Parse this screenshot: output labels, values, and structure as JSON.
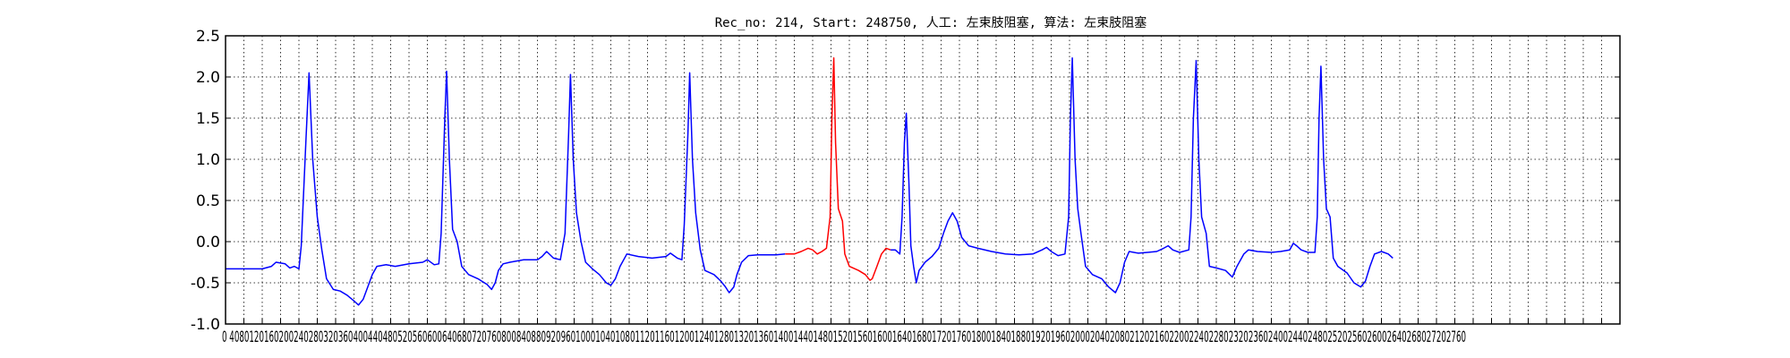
{
  "chart_data": {
    "type": "line",
    "title": "Rec_no: 214, Start: 248750, 人工: 左束肢阻塞, 算法: 左束肢阻塞",
    "xlabel": "",
    "ylabel": "",
    "xlim": [
      0,
      3040
    ],
    "ylim": [
      -1.0,
      2.5
    ],
    "grid": true,
    "yticks": [
      "2.5",
      "2.0",
      "1.5",
      "1.0",
      "0.5",
      "0.0",
      "-0.5",
      "-1.0"
    ],
    "xtick_text": "0 4080120160200240280320360400440480520560600640680720760800840880920960100010401080112011601200124012801320136014001440148015201560160016401680172017601800184018801920196020002040208021202160220022402280232023602400244024802520256026002640268027202760",
    "colors": {
      "main": "#0000ff",
      "highlight": "#ff0000"
    },
    "series": [
      {
        "color": "main",
        "points": [
          [
            0,
            -0.33
          ],
          [
            40,
            -0.33
          ],
          [
            80,
            -0.33
          ],
          [
            100,
            -0.3
          ],
          [
            110,
            -0.25
          ],
          [
            130,
            -0.27
          ],
          [
            140,
            -0.32
          ],
          [
            150,
            -0.3
          ],
          [
            160,
            -0.33
          ],
          [
            165,
            -0.05
          ],
          [
            175,
            1.2
          ],
          [
            182,
            2.05
          ],
          [
            190,
            1.0
          ],
          [
            200,
            0.3
          ],
          [
            210,
            -0.1
          ],
          [
            220,
            -0.45
          ],
          [
            235,
            -0.58
          ],
          [
            250,
            -0.6
          ],
          [
            265,
            -0.65
          ],
          [
            280,
            -0.72
          ],
          [
            290,
            -0.77
          ],
          [
            300,
            -0.7
          ],
          [
            310,
            -0.55
          ],
          [
            320,
            -0.4
          ],
          [
            330,
            -0.3
          ],
          [
            350,
            -0.28
          ],
          [
            370,
            -0.3
          ],
          [
            400,
            -0.27
          ],
          [
            430,
            -0.25
          ],
          [
            440,
            -0.22
          ],
          [
            455,
            -0.28
          ],
          [
            465,
            -0.27
          ],
          [
            470,
            0.1
          ],
          [
            478,
            1.5
          ],
          [
            482,
            2.07
          ],
          [
            488,
            1.0
          ],
          [
            495,
            0.15
          ],
          [
            505,
            0.0
          ],
          [
            515,
            -0.3
          ],
          [
            530,
            -0.4
          ],
          [
            550,
            -0.45
          ],
          [
            570,
            -0.52
          ],
          [
            580,
            -0.58
          ],
          [
            588,
            -0.5
          ],
          [
            595,
            -0.35
          ],
          [
            605,
            -0.27
          ],
          [
            620,
            -0.25
          ],
          [
            650,
            -0.22
          ],
          [
            680,
            -0.22
          ],
          [
            690,
            -0.18
          ],
          [
            700,
            -0.12
          ],
          [
            715,
            -0.2
          ],
          [
            730,
            -0.22
          ],
          [
            740,
            0.1
          ],
          [
            748,
            1.3
          ],
          [
            752,
            2.03
          ],
          [
            758,
            1.0
          ],
          [
            765,
            0.35
          ],
          [
            775,
            0.0
          ],
          [
            785,
            -0.25
          ],
          [
            800,
            -0.33
          ],
          [
            815,
            -0.4
          ],
          [
            830,
            -0.5
          ],
          [
            840,
            -0.53
          ],
          [
            850,
            -0.45
          ],
          [
            860,
            -0.3
          ],
          [
            875,
            -0.15
          ],
          [
            900,
            -0.18
          ],
          [
            930,
            -0.2
          ],
          [
            960,
            -0.18
          ],
          [
            970,
            -0.14
          ],
          [
            985,
            -0.2
          ],
          [
            995,
            -0.22
          ],
          [
            1000,
            0.2
          ],
          [
            1008,
            1.3
          ],
          [
            1012,
            2.05
          ],
          [
            1018,
            1.0
          ],
          [
            1025,
            0.35
          ],
          [
            1035,
            -0.1
          ],
          [
            1045,
            -0.35
          ],
          [
            1065,
            -0.4
          ],
          [
            1080,
            -0.48
          ],
          [
            1090,
            -0.55
          ],
          [
            1098,
            -0.62
          ],
          [
            1108,
            -0.55
          ],
          [
            1115,
            -0.4
          ],
          [
            1125,
            -0.25
          ],
          [
            1140,
            -0.17
          ],
          [
            1160,
            -0.16
          ],
          [
            1190,
            -0.16
          ],
          [
            1200,
            -0.16
          ],
          [
            1220,
            -0.15
          ]
        ]
      },
      {
        "color": "highlight",
        "points": [
          [
            1220,
            -0.15
          ],
          [
            1240,
            -0.15
          ],
          [
            1255,
            -0.12
          ],
          [
            1270,
            -0.08
          ],
          [
            1280,
            -0.1
          ],
          [
            1290,
            -0.15
          ],
          [
            1300,
            -0.12
          ],
          [
            1310,
            -0.08
          ],
          [
            1318,
            0.3
          ],
          [
            1322,
            1.5
          ],
          [
            1326,
            2.23
          ],
          [
            1330,
            1.2
          ],
          [
            1336,
            0.4
          ],
          [
            1345,
            0.25
          ],
          [
            1350,
            -0.15
          ],
          [
            1360,
            -0.3
          ],
          [
            1380,
            -0.35
          ],
          [
            1395,
            -0.4
          ],
          [
            1405,
            -0.47
          ],
          [
            1410,
            -0.45
          ],
          [
            1420,
            -0.3
          ],
          [
            1430,
            -0.15
          ],
          [
            1440,
            -0.08
          ],
          [
            1450,
            -0.1
          ]
        ]
      },
      {
        "color": "main",
        "points": [
          [
            1450,
            -0.1
          ],
          [
            1460,
            -0.1
          ],
          [
            1470,
            -0.15
          ],
          [
            1475,
            0.3
          ],
          [
            1480,
            1.2
          ],
          [
            1484,
            1.56
          ],
          [
            1490,
            0.7
          ],
          [
            1494,
            -0.05
          ],
          [
            1500,
            -0.3
          ],
          [
            1506,
            -0.5
          ],
          [
            1512,
            -0.35
          ],
          [
            1525,
            -0.25
          ],
          [
            1540,
            -0.18
          ],
          [
            1555,
            -0.08
          ],
          [
            1565,
            0.1
          ],
          [
            1575,
            0.25
          ],
          [
            1585,
            0.35
          ],
          [
            1595,
            0.25
          ],
          [
            1605,
            0.05
          ],
          [
            1620,
            -0.05
          ],
          [
            1640,
            -0.08
          ],
          [
            1670,
            -0.12
          ],
          [
            1700,
            -0.15
          ],
          [
            1730,
            -0.16
          ],
          [
            1760,
            -0.15
          ],
          [
            1780,
            -0.1
          ],
          [
            1790,
            -0.07
          ],
          [
            1800,
            -0.12
          ],
          [
            1815,
            -0.17
          ],
          [
            1830,
            -0.15
          ],
          [
            1838,
            0.3
          ],
          [
            1842,
            1.5
          ],
          [
            1846,
            2.23
          ],
          [
            1852,
            1.0
          ],
          [
            1858,
            0.4
          ],
          [
            1865,
            0.1
          ],
          [
            1875,
            -0.3
          ],
          [
            1890,
            -0.4
          ],
          [
            1910,
            -0.45
          ],
          [
            1925,
            -0.55
          ],
          [
            1940,
            -0.62
          ],
          [
            1950,
            -0.5
          ],
          [
            1960,
            -0.25
          ],
          [
            1970,
            -0.12
          ],
          [
            1990,
            -0.14
          ],
          [
            2010,
            -0.13
          ],
          [
            2030,
            -0.12
          ],
          [
            2045,
            -0.08
          ],
          [
            2055,
            -0.05
          ],
          [
            2065,
            -0.1
          ],
          [
            2080,
            -0.13
          ],
          [
            2100,
            -0.1
          ],
          [
            2105,
            0.3
          ],
          [
            2110,
            1.5
          ],
          [
            2116,
            2.2
          ],
          [
            2122,
            1.0
          ],
          [
            2128,
            0.3
          ],
          [
            2138,
            0.1
          ],
          [
            2145,
            -0.3
          ],
          [
            2160,
            -0.32
          ],
          [
            2180,
            -0.35
          ],
          [
            2195,
            -0.43
          ],
          [
            2205,
            -0.3
          ],
          [
            2220,
            -0.15
          ],
          [
            2230,
            -0.1
          ],
          [
            2250,
            -0.12
          ],
          [
            2280,
            -0.13
          ],
          [
            2300,
            -0.12
          ],
          [
            2320,
            -0.1
          ],
          [
            2328,
            -0.02
          ],
          [
            2335,
            -0.05
          ],
          [
            2345,
            -0.1
          ],
          [
            2360,
            -0.13
          ],
          [
            2375,
            -0.13
          ],
          [
            2380,
            0.3
          ],
          [
            2384,
            1.5
          ],
          [
            2388,
            2.13
          ],
          [
            2394,
            1.0
          ],
          [
            2400,
            0.4
          ],
          [
            2408,
            0.3
          ],
          [
            2415,
            -0.2
          ],
          [
            2425,
            -0.3
          ],
          [
            2445,
            -0.38
          ],
          [
            2460,
            -0.5
          ],
          [
            2475,
            -0.55
          ],
          [
            2485,
            -0.48
          ],
          [
            2495,
            -0.3
          ],
          [
            2505,
            -0.15
          ],
          [
            2520,
            -0.12
          ],
          [
            2535,
            -0.15
          ],
          [
            2545,
            -0.2
          ]
        ]
      }
    ]
  }
}
